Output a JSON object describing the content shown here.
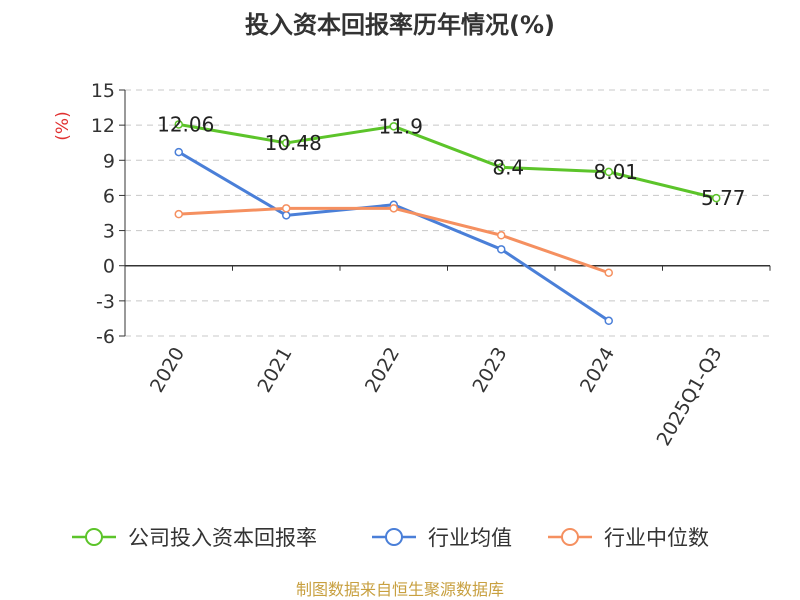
{
  "chart_data": {
    "type": "line",
    "title": "投入资本回报率历年情况(%)",
    "ylabel": "(%)",
    "xlabel": "",
    "categories": [
      "2020",
      "2021",
      "2022",
      "2023",
      "2024",
      "2025Q1-Q3"
    ],
    "ylim": [
      -6,
      15
    ],
    "yticks": [
      15,
      12,
      9,
      6,
      3,
      0,
      -3,
      -6
    ],
    "grid": true,
    "legend_position": "bottom",
    "series": [
      {
        "name": "公司投入资本回报率",
        "color": "#5cc42a",
        "labels": true,
        "values": [
          12.06,
          10.48,
          11.9,
          8.4,
          8.01,
          5.77
        ]
      },
      {
        "name": "行业均值",
        "color": "#4a7fd8",
        "labels": false,
        "values": [
          9.7,
          4.3,
          5.2,
          1.4,
          -4.7,
          null
        ]
      },
      {
        "name": "行业中位数",
        "color": "#f59060",
        "labels": false,
        "values": [
          4.4,
          4.9,
          4.9,
          2.6,
          -0.6,
          null
        ]
      }
    ]
  },
  "source": "制图数据来自恒生聚源数据库",
  "colors": {
    "title": "#333333",
    "axis": "#333333",
    "grid": "#c8c8c8",
    "ylabel": "#e03030",
    "source": "#c8a040"
  }
}
